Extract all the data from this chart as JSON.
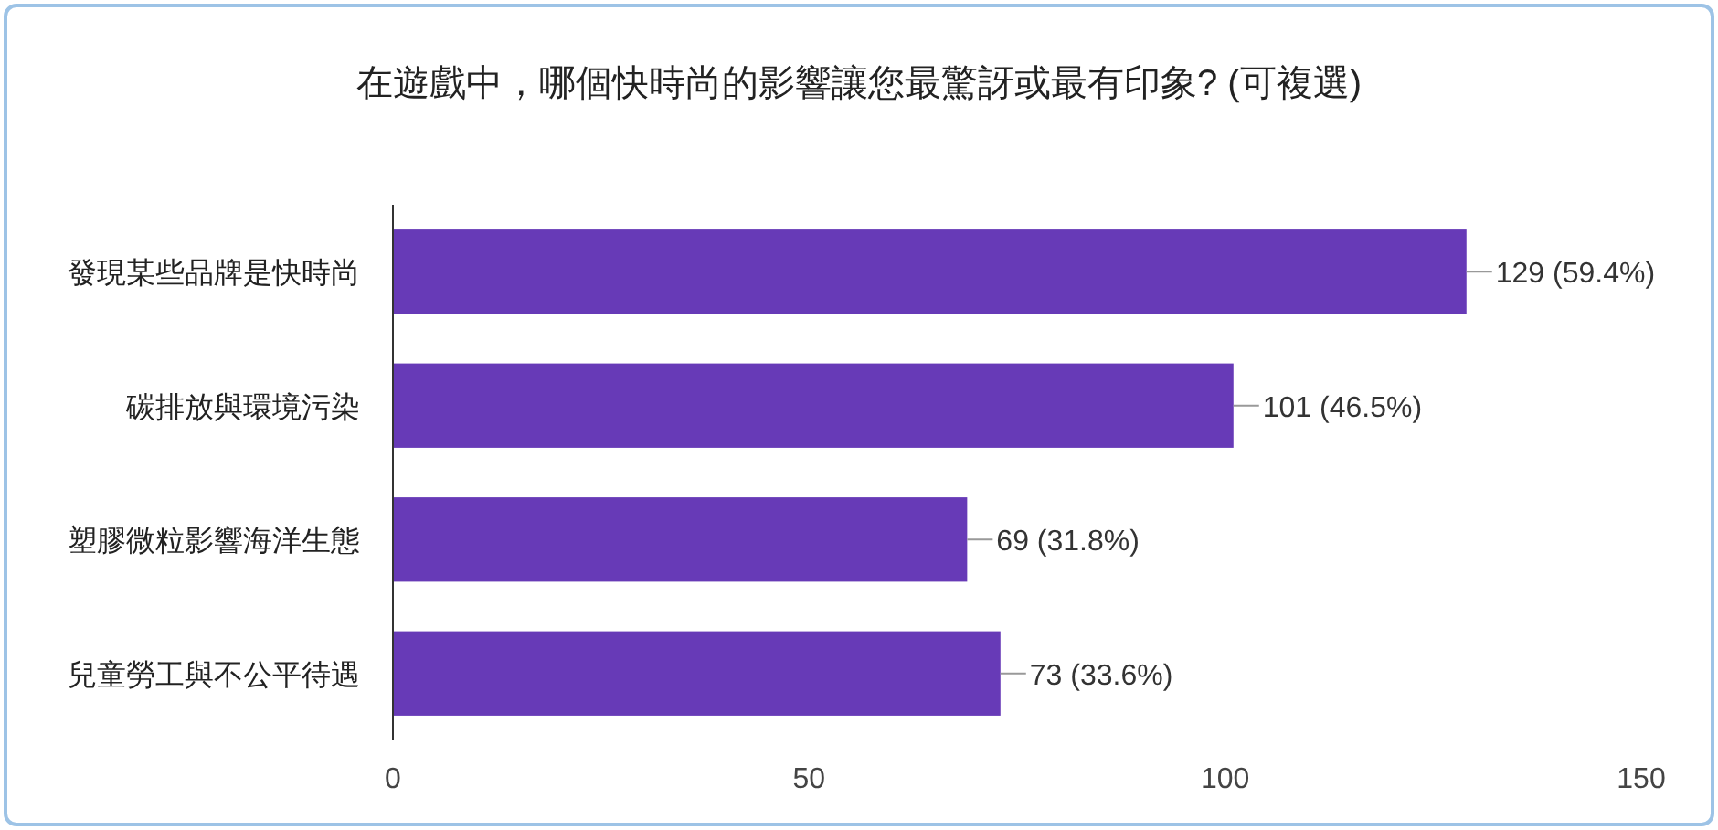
{
  "chart_data": {
    "type": "bar",
    "orientation": "horizontal",
    "title": "在遊戲中，哪個快時尚的影響讓您最驚訝或最有印象? (可複選)",
    "categories": [
      "發現某些品牌是快時尚",
      "碳排放與環境污染",
      "塑膠微粒影響海洋生態",
      "兒童勞工與不公平待遇"
    ],
    "values": [
      129,
      101,
      69,
      73
    ],
    "value_labels": [
      "129 (59.4%)",
      "101 (46.5%)",
      "69 (31.8%)",
      "73 (33.6%)"
    ],
    "color": "#673ab7",
    "xlim": [
      0,
      150
    ],
    "xticks": [
      0,
      50,
      100,
      150
    ]
  }
}
